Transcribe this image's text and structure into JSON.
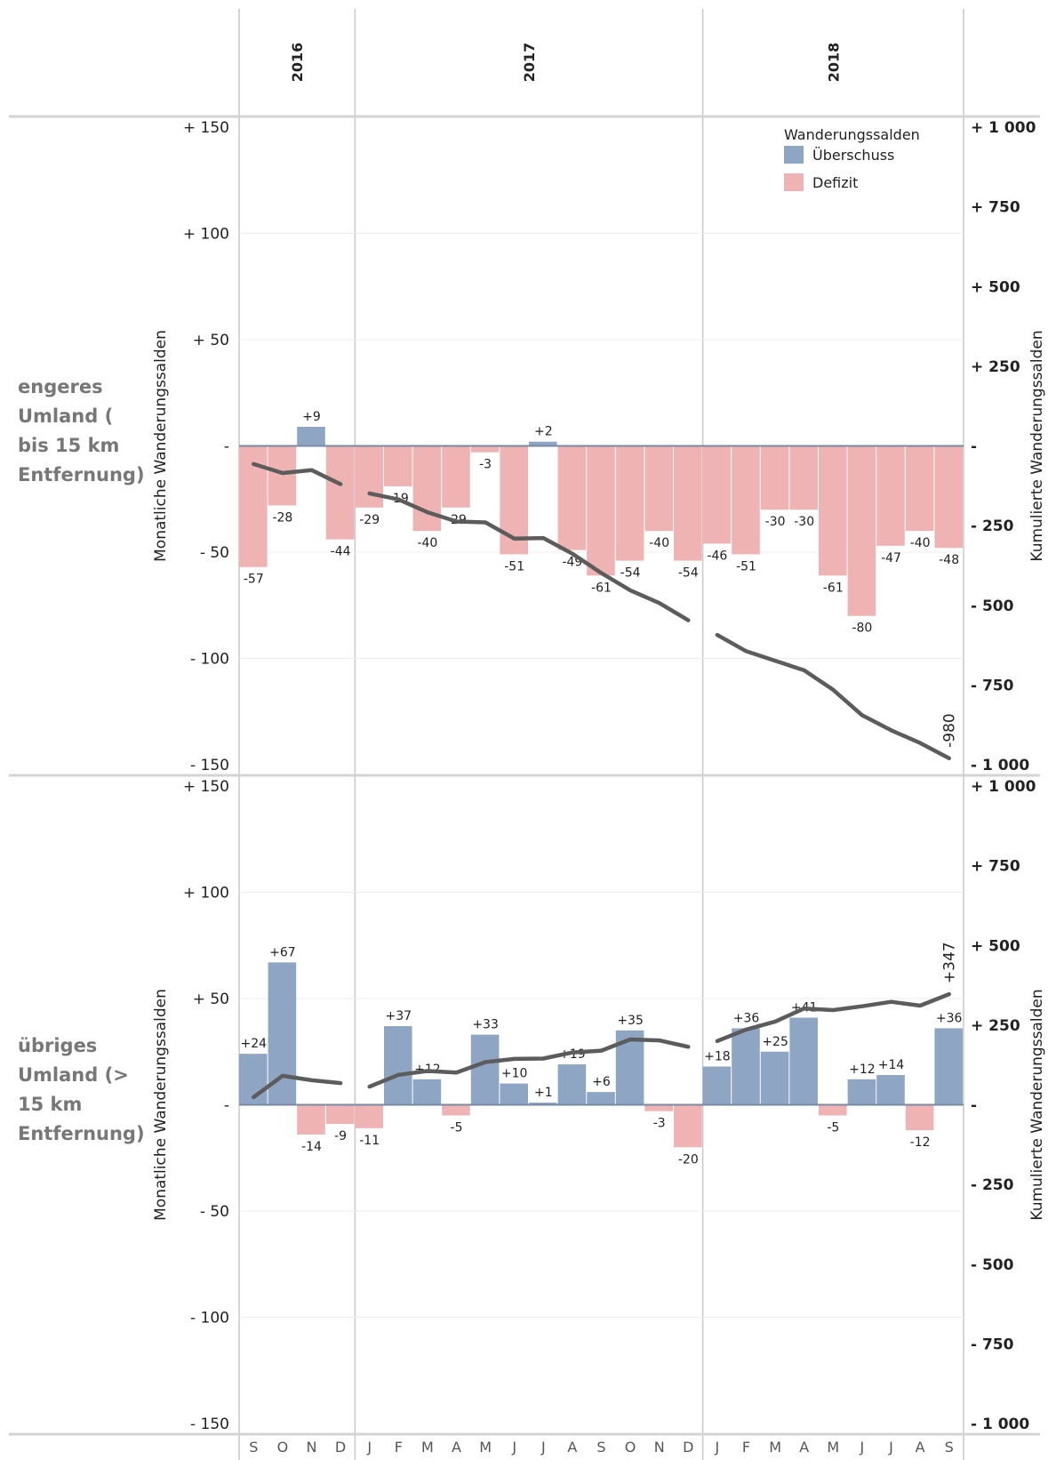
{
  "chart_data": {
    "type": "bar",
    "years": [
      {
        "label": "2016",
        "from": 0,
        "count": 4
      },
      {
        "label": "2017",
        "from": 4,
        "count": 12
      },
      {
        "label": "2018",
        "from": 16,
        "count": 9
      }
    ],
    "months": [
      "S",
      "O",
      "N",
      "D",
      "J",
      "F",
      "M",
      "A",
      "M",
      "J",
      "J",
      "A",
      "S",
      "O",
      "N",
      "D",
      "J",
      "F",
      "M",
      "A",
      "M",
      "J",
      "J",
      "A",
      "S"
    ],
    "left_axis": {
      "title": "Monatliche Wanderungssalden",
      "range": [
        -150,
        150
      ],
      "ticks": [
        150,
        100,
        50,
        0,
        -50,
        -100,
        -150
      ],
      "tick_labels": [
        "+ 150",
        "+ 100",
        "+ 50",
        "-",
        "- 50",
        "- 100",
        "- 150"
      ]
    },
    "right_axis": {
      "title": "Kumulierte Wanderungssalden",
      "range": [
        -1000,
        1000
      ],
      "ticks": [
        1000,
        750,
        500,
        250,
        0,
        -250,
        -500,
        -750,
        -1000
      ],
      "tick_labels": [
        "+ 1 000",
        "+ 750",
        "+ 500",
        "+ 250",
        "-",
        "- 250",
        "- 500",
        "- 750",
        "- 1 000"
      ]
    },
    "legend": {
      "title": "Wanderungssalden",
      "position": "top-right",
      "items": [
        {
          "label": "Überschuss",
          "color": "#8ea5c4"
        },
        {
          "label": "Defizit",
          "color": "#f0b3b3"
        }
      ]
    },
    "colors": {
      "surplus": "#8ea5c4",
      "deficit": "#f0b3b3",
      "line": "#5c5c5c"
    },
    "panels": [
      {
        "row_label": "engeres Umland ( bis 15 km Entfernung)",
        "values": [
          -57,
          -28,
          9,
          -44,
          -29,
          -19,
          -40,
          -29,
          -3,
          -51,
          2,
          -49,
          -61,
          -54,
          -40,
          -54,
          -46,
          -51,
          -30,
          -30,
          -61,
          -80,
          -47,
          -40,
          -48
        ],
        "labels": [
          "-57",
          "-28",
          "+9",
          "-44",
          "-29",
          "-19",
          "-40",
          "-29",
          "-3",
          "-51",
          "+2",
          "-49",
          "-61",
          "-54",
          "-40",
          "-54",
          "-46",
          "-51",
          "-30",
          "-30",
          "-61",
          "-80",
          "-47",
          "-40",
          "-48"
        ],
        "cumulative": [
          [
            -57,
            -85,
            -76,
            -120
          ],
          [
            -149,
            -168,
            -208,
            -237,
            -240,
            -291,
            -289,
            -338,
            -399,
            -453,
            -493,
            -547
          ],
          [
            -593,
            -644,
            -674,
            -704,
            -765,
            -845,
            -892,
            -932,
            -980
          ]
        ],
        "end_label": "-980"
      },
      {
        "row_label": "übriges Umland (> 15 km Entfernung)",
        "values": [
          24,
          67,
          -14,
          -9,
          -11,
          37,
          12,
          -5,
          33,
          10,
          1,
          19,
          6,
          35,
          -3,
          -20,
          18,
          36,
          25,
          41,
          -5,
          12,
          14,
          -12,
          36
        ],
        "labels": [
          "+24",
          "+67",
          "-14",
          "-9",
          "-11",
          "+37",
          "+12",
          "-5",
          "+33",
          "+10",
          "+1",
          "+19",
          "+6",
          "+35",
          "-3",
          "-20",
          "+18",
          "+36",
          "+25",
          "+41",
          "-5",
          "+12",
          "+14",
          "-12",
          "+36"
        ],
        "cumulative": [
          [
            24,
            91,
            77,
            68
          ],
          [
            57,
            94,
            106,
            101,
            134,
            144,
            145,
            164,
            170,
            205,
            202,
            182
          ],
          [
            200,
            236,
            261,
            302,
            297,
            309,
            323,
            311,
            347
          ]
        ],
        "end_label": "+347"
      }
    ]
  }
}
